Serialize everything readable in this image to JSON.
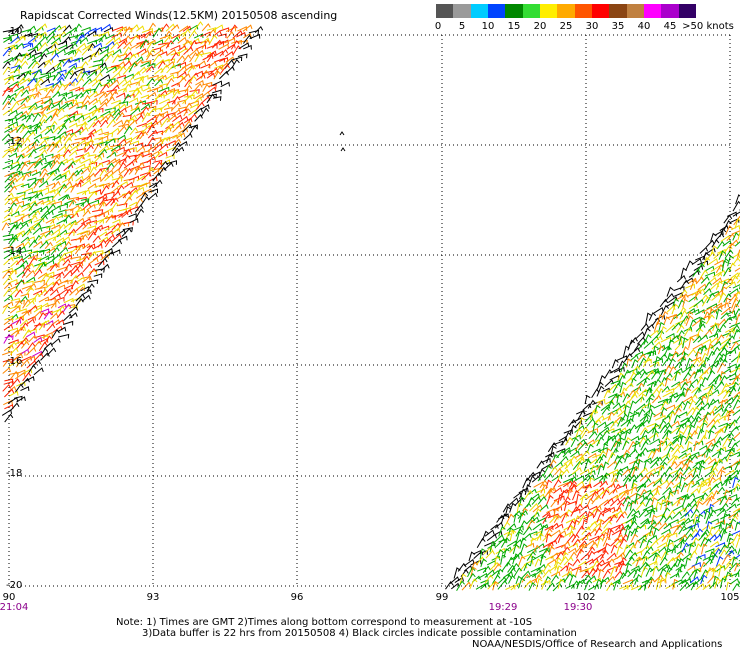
{
  "title": "Rapidscat Corrected Winds(12.5KM) 20150508 ascending",
  "colorbar": {
    "colors": [
      "#555555",
      "#9a9a9a",
      "#00ccff",
      "#0044ff",
      "#008800",
      "#33dd33",
      "#ffee00",
      "#ffaa00",
      "#ff5500",
      "#ff0000",
      "#8b4513",
      "#c08040",
      "#ff00ff",
      "#aa00cc",
      "#330066"
    ],
    "labels": [
      "0",
      "5",
      "10",
      "15",
      "20",
      "25",
      "30",
      "35",
      "40",
      "45",
      ">50 knots"
    ]
  },
  "axes": {
    "lat_labels": [
      "-10",
      "-12",
      "-14",
      "-16",
      "-18",
      "-20"
    ],
    "lon_labels": [
      "90",
      "93",
      "96",
      "99",
      "102",
      "105"
    ],
    "time_labels": [
      {
        "text": "21:04",
        "lon": "90"
      },
      {
        "text": "19:29",
        "lon": "100"
      },
      {
        "text": "19:30",
        "lon": "101.5"
      }
    ]
  },
  "wind_speed_colors": {
    "green": "#00aa00",
    "yellow": "#eedd00",
    "orange": "#ff8800",
    "red": "#ff2200",
    "magenta": "#cc00cc",
    "black": "#000000",
    "blue": "#0033ff"
  },
  "notes": {
    "line1": "Note: 1) Times are GMT 2)Times along bottom correspond to measurement at -10S",
    "line2": "3)Data buffer is 22 hrs from 20150508 4) Black circles indicate possible contamination",
    "credit": "NOAA/NESDIS/Office of Research and Applications"
  }
}
